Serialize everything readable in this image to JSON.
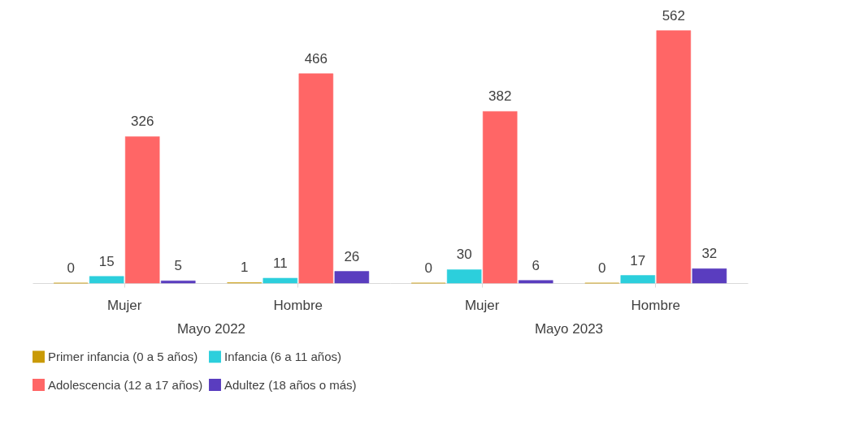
{
  "chart_data": {
    "type": "bar",
    "categories": [
      "Mujer",
      "Hombre",
      "Mujer",
      "Hombre"
    ],
    "annotations": [
      "Mayo 2022",
      "Mayo 2023"
    ],
    "series": [
      {
        "name": "Primer infancia (0 a 5 años)",
        "color": "#c99a06",
        "values": [
          0,
          1,
          0,
          0
        ]
      },
      {
        "name": "Infancia (6 a 11 años)",
        "color": "#2ccfdc",
        "values": [
          15,
          11,
          30,
          17
        ]
      },
      {
        "name": "Adolescencia (12 a 17 años)",
        "color": "#ff6666",
        "values": [
          326,
          466,
          382,
          562
        ]
      },
      {
        "name": "Adultez (18 años o más)",
        "color": "#5a3dbf",
        "values": [
          5,
          26,
          6,
          32
        ]
      }
    ],
    "data_labels": true,
    "legend": "bottom"
  }
}
